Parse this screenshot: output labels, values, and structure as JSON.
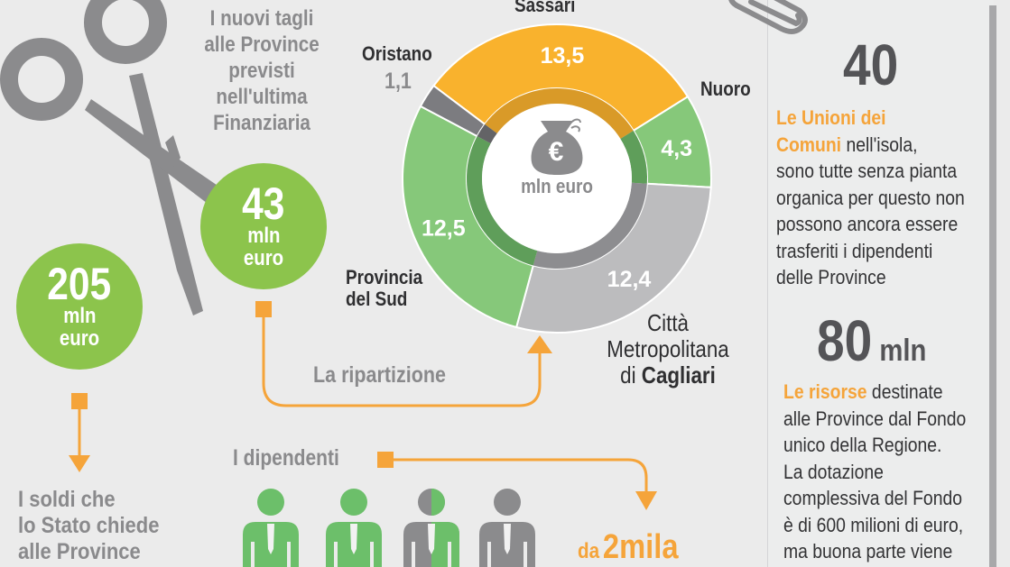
{
  "header": {
    "title_lines": [
      "I nuovi  tagli",
      "alle Province",
      "previsti",
      "nell'ultima",
      "Finanziaria"
    ]
  },
  "bubbles": {
    "cut": {
      "value": "43",
      "unit_line1": "mln",
      "unit_line2": "euro"
    },
    "state": {
      "value": "205",
      "unit_line1": "mln",
      "unit_line2": "euro"
    }
  },
  "labels": {
    "ripartizione": "La ripartizione",
    "soldi_lines": [
      "I soldi che",
      "lo Stato chiede",
      "alle Province"
    ],
    "dipendenti": "I dipendenti",
    "da": "da",
    "duemila": "2mila"
  },
  "donut_center": {
    "unit": "mln euro",
    "icon": "money-bag-euro-icon"
  },
  "chart_data": {
    "type": "pie",
    "title": "La ripartizione",
    "unit": "mln euro",
    "total": 43.8,
    "slices": [
      {
        "name": "Sassari",
        "value": 13.5,
        "label": "13,5",
        "color": "#f9b22d",
        "inner_color": "#d99a28"
      },
      {
        "name": "Nuoro",
        "value": 4.3,
        "label": "4,3",
        "color": "#86c87a",
        "inner_color": "#5f9e5a"
      },
      {
        "name": "Città Metropolitana di Cagliari",
        "value": 12.4,
        "label": "12,4",
        "color": "#bcbcbe",
        "inner_color": "#8d8d90"
      },
      {
        "name": "Provincia del Sud",
        "value": 12.5,
        "label": "12,5",
        "color": "#86c87a",
        "inner_color": "#5f9e5a"
      },
      {
        "name": "Oristano",
        "value": 1.1,
        "label": "1,1",
        "color": "#7c7c80",
        "inner_color": "#636366"
      }
    ],
    "start_angle_deg": 307
  },
  "slice_labels": {
    "sassari": "Sassari",
    "nuoro": "Nuoro",
    "oristano": "Oristano",
    "oristano_value": "1,1",
    "sud_line1": "Provincia",
    "sud_line2": "del Sud",
    "citta_line1": "Città",
    "citta_line2": "Metropolitana",
    "citta_line3_pre": "di ",
    "citta_line3_bold": "Cagliari"
  },
  "employees": {
    "icons": [
      {
        "fill": "green"
      },
      {
        "fill": "green"
      },
      {
        "fill": "half"
      },
      {
        "fill": "gray"
      }
    ]
  },
  "panel": {
    "stat1": {
      "value": "40"
    },
    "stat1_text": {
      "highlight_line1": "Le Unioni dei",
      "highlight_line2": "Comuni",
      "line2_rest": " nell'isola,",
      "lines": [
        "sono tutte senza pianta",
        "organica per questo non",
        "possono ancora essere",
        "trasferiti i dipendenti",
        "delle Province"
      ]
    },
    "stat2": {
      "value": "80",
      "unit": " mln"
    },
    "stat2_text": {
      "highlight": "Le risorse",
      "line1_rest": " destinate",
      "lines": [
        "alle Province dal Fondo",
        "unico della Regione.",
        "La dotazione",
        "complessiva del Fondo",
        "è di 600 milioni di euro,",
        "ma buona parte viene"
      ]
    }
  },
  "colors": {
    "background": "#ebebeb",
    "green_bubble": "#8cc44c",
    "orange": "#f5a43a",
    "gray_text": "#8a8a8c",
    "dark_text": "#2f2f31",
    "icon_gray": "#8b8b8d",
    "person_green": "#6cbf6a"
  }
}
